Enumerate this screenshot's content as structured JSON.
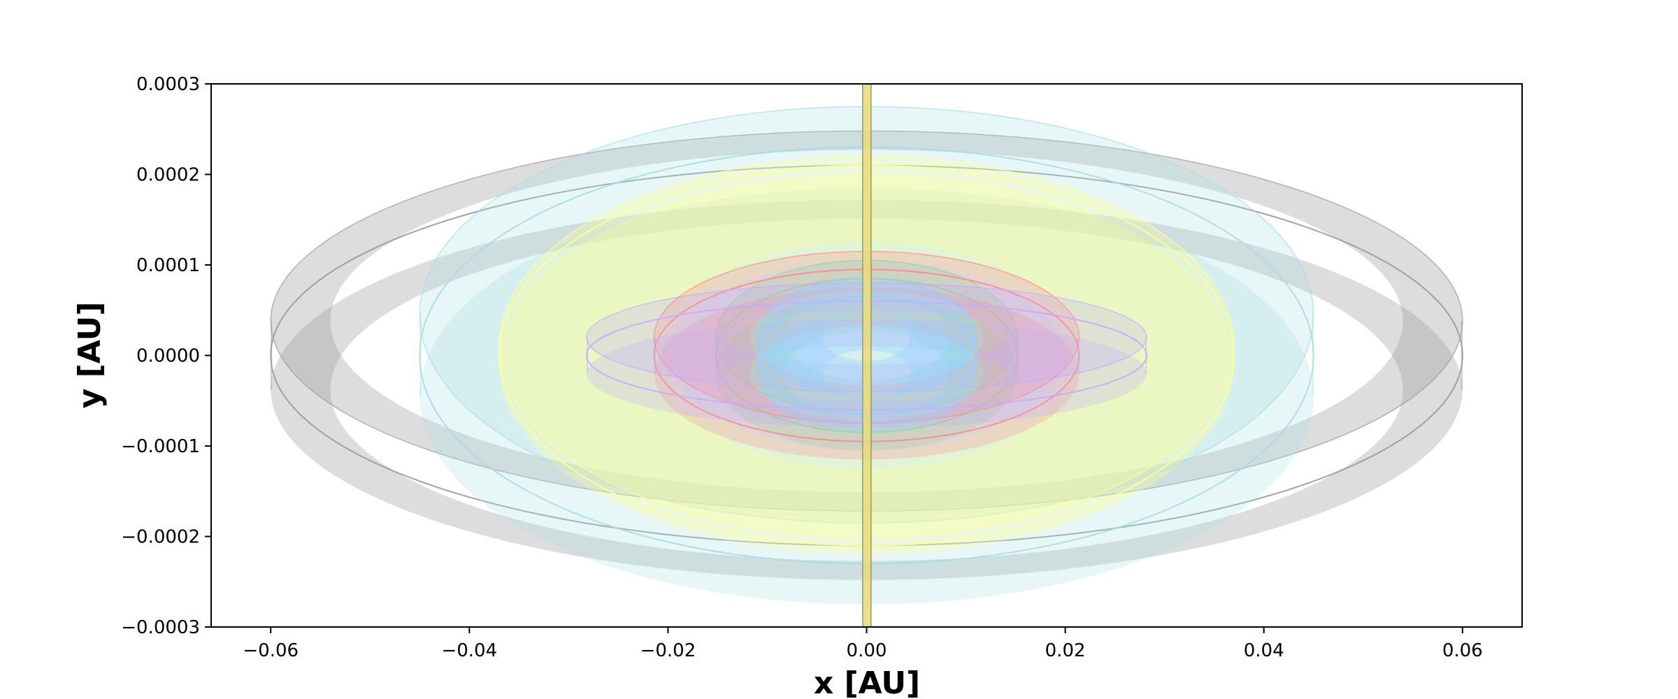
{
  "chart_data": {
    "type": "scatter",
    "title": "",
    "xlabel": "x [AU]",
    "ylabel": "y [AU]",
    "xlim": [
      -0.066,
      0.066
    ],
    "ylim": [
      -0.0003,
      0.0003
    ],
    "xticks": [
      -0.06,
      -0.04,
      -0.02,
      0.0,
      0.02,
      0.04,
      0.06
    ],
    "xtick_labels": [
      "−0.06",
      "−0.04",
      "−0.02",
      "0.00",
      "0.02",
      "0.04",
      "0.06"
    ],
    "yticks": [
      0.0003,
      0.0002,
      0.0001,
      0.0,
      -0.0001,
      -0.0002,
      -0.0003
    ],
    "ytick_labels": [
      "0.0003",
      "0.0002",
      "0.0001",
      "0.0000",
      "−0.0001",
      "−0.0002",
      "−0.0003"
    ],
    "grid": false,
    "legend": "none",
    "series": [
      {
        "color": "#999999",
        "fill_alpha": 0.55,
        "a": 0.06,
        "b": 0.00021,
        "thickness": 5e-05,
        "z_offset": 3.8e-05,
        "inner_radius_fraction": 0.9
      },
      {
        "color": "#a8dce3",
        "fill_alpha": 0.45,
        "a": 0.045,
        "b": 0.00023,
        "thickness": 9e-05,
        "z_offset": 4.5e-05,
        "inner_radius_fraction": 0.0
      },
      {
        "color": "#ffff99",
        "fill_alpha": 0.5,
        "a": 0.037,
        "b": 0.00021,
        "thickness": 9e-05,
        "z_offset": 1e-05,
        "inner_radius_fraction": 0.55
      },
      {
        "color": "#77ee99",
        "fill_alpha": 0.45,
        "a": 0.0152,
        "b": 8.5e-05,
        "thickness": 4e-05,
        "z_offset": 2e-05,
        "inner_radius_fraction": 0.55
      },
      {
        "color": "#ff8888",
        "fill_alpha": 0.45,
        "a": 0.0214,
        "b": 9.5e-05,
        "thickness": 4e-05,
        "z_offset": 2e-05,
        "inner_radius_fraction": 0.55
      },
      {
        "color": "#c4aaff",
        "fill_alpha": 0.45,
        "a": 0.0282,
        "b": 6e-05,
        "thickness": 4e-05,
        "z_offset": 2e-05,
        "inner_radius_fraction": 0.5
      },
      {
        "color": "#99ccff",
        "fill_alpha": 0.6,
        "a": 0.011,
        "b": 6.5e-05,
        "thickness": 4e-05,
        "z_offset": 2e-05,
        "inner_radius_fraction": 0.4
      }
    ],
    "central_bar": {
      "color": "#e8dc80",
      "edge_color": "#999966",
      "x": 0.0,
      "half_width": 0.0004
    }
  }
}
